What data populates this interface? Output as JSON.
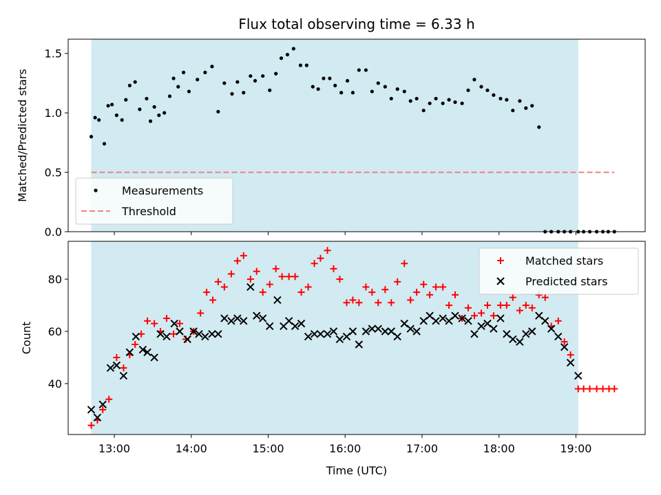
{
  "title": "Flux total observing time = 6.33 h",
  "colors": {
    "shade": "#add8e6",
    "measurement": "#000000",
    "threshold": "#f08080",
    "matched": "#ff0000",
    "predicted": "#000000"
  },
  "chart_data": [
    {
      "type": "scatter",
      "ylabel": "Matched/Predicted stars",
      "xlim": [
        12.4,
        19.9
      ],
      "ylim": [
        0.0,
        1.62
      ],
      "yticks": [
        "0.0",
        "0.5",
        "1.0",
        "1.5"
      ],
      "ytick_values": [
        0.0,
        0.5,
        1.0,
        1.5
      ],
      "observing_window": [
        12.7,
        19.03
      ],
      "threshold": {
        "name": "Threshold",
        "value": 0.5,
        "x": [
          12.7,
          19.5
        ]
      },
      "legend": {
        "position": "lower-left",
        "entries": [
          "Measurements",
          "Threshold"
        ]
      },
      "series": [
        {
          "name": "Measurements",
          "x": [
            12.7,
            12.75,
            12.8,
            12.87,
            12.92,
            12.97,
            13.03,
            13.1,
            13.15,
            13.2,
            13.27,
            13.33,
            13.42,
            13.47,
            13.52,
            13.58,
            13.65,
            13.72,
            13.77,
            13.83,
            13.9,
            13.97,
            14.08,
            14.18,
            14.27,
            14.35,
            14.43,
            14.53,
            14.6,
            14.68,
            14.77,
            14.83,
            14.93,
            15.02,
            15.1,
            15.17,
            15.25,
            15.33,
            15.42,
            15.5,
            15.58,
            15.65,
            15.72,
            15.8,
            15.87,
            15.95,
            16.03,
            16.1,
            16.18,
            16.27,
            16.35,
            16.43,
            16.52,
            16.6,
            16.68,
            16.77,
            16.85,
            16.93,
            17.02,
            17.1,
            17.18,
            17.27,
            17.35,
            17.43,
            17.52,
            17.6,
            17.68,
            17.77,
            17.85,
            17.93,
            18.02,
            18.1,
            18.18,
            18.27,
            18.35,
            18.43,
            18.52,
            18.6,
            18.68,
            18.77,
            18.85,
            18.93,
            19.03,
            19.1,
            19.18,
            19.27,
            19.35,
            19.42,
            19.5
          ],
          "y": [
            0.8,
            0.96,
            0.94,
            0.74,
            1.06,
            1.07,
            0.98,
            0.94,
            1.11,
            1.23,
            1.26,
            1.03,
            1.12,
            0.93,
            1.05,
            0.98,
            1.0,
            1.14,
            1.29,
            1.22,
            1.34,
            1.18,
            1.28,
            1.34,
            1.39,
            1.01,
            1.25,
            1.16,
            1.26,
            1.17,
            1.31,
            1.27,
            1.31,
            1.19,
            1.33,
            1.46,
            1.49,
            1.54,
            1.4,
            1.4,
            1.22,
            1.2,
            1.29,
            1.29,
            1.23,
            1.17,
            1.27,
            1.17,
            1.36,
            1.36,
            1.18,
            1.25,
            1.22,
            1.12,
            1.2,
            1.18,
            1.1,
            1.12,
            1.02,
            1.08,
            1.12,
            1.08,
            1.11,
            1.09,
            1.08,
            1.19,
            1.28,
            1.22,
            1.19,
            1.15,
            1.12,
            1.11,
            1.02,
            1.1,
            1.04,
            1.06,
            0.88,
            0.0,
            0.0,
            0.0,
            0.0,
            0.0,
            0.0,
            0.0,
            0.0,
            0.0,
            0.0,
            0.0,
            0.0
          ]
        }
      ]
    },
    {
      "type": "scatter",
      "xlabel": "Time (UTC)",
      "ylabel": "Count",
      "xlim": [
        12.4,
        19.9
      ],
      "ylim": [
        20.5,
        94.5
      ],
      "xticks": [
        "13:00",
        "14:00",
        "15:00",
        "16:00",
        "17:00",
        "18:00",
        "19:00"
      ],
      "xtick_values": [
        13,
        14,
        15,
        16,
        17,
        18,
        19
      ],
      "yticks": [
        "40",
        "60",
        "80"
      ],
      "ytick_values": [
        40,
        60,
        80
      ],
      "observing_window": [
        12.7,
        19.03
      ],
      "legend": {
        "position": "top-right",
        "entries": [
          "Matched stars",
          "Predicted stars"
        ]
      },
      "series": [
        {
          "name": "Matched stars",
          "x": [
            12.7,
            12.78,
            12.85,
            12.93,
            13.03,
            13.12,
            13.2,
            13.27,
            13.35,
            13.43,
            13.52,
            13.6,
            13.68,
            13.77,
            13.85,
            13.93,
            14.03,
            14.12,
            14.2,
            14.28,
            14.35,
            14.43,
            14.52,
            14.6,
            14.68,
            14.77,
            14.85,
            14.93,
            15.02,
            15.1,
            15.18,
            15.27,
            15.35,
            15.43,
            15.52,
            15.6,
            15.68,
            15.77,
            15.85,
            15.93,
            16.02,
            16.1,
            16.18,
            16.27,
            16.35,
            16.43,
            16.52,
            16.6,
            16.68,
            16.77,
            16.85,
            16.93,
            17.02,
            17.1,
            17.18,
            17.27,
            17.35,
            17.43,
            17.52,
            17.6,
            17.68,
            17.77,
            17.85,
            17.93,
            18.02,
            18.1,
            18.18,
            18.27,
            18.35,
            18.43,
            18.52,
            18.6,
            18.68,
            18.77,
            18.85,
            18.93,
            19.03,
            19.1,
            19.18,
            19.27,
            19.35,
            19.43,
            19.5
          ],
          "y": [
            24,
            26,
            30,
            34,
            50,
            46,
            51,
            55,
            59,
            64,
            63,
            60,
            65,
            59,
            63,
            57,
            60,
            67,
            75,
            72,
            79,
            77,
            82,
            87,
            89,
            80,
            83,
            75,
            78,
            84,
            81,
            81,
            81,
            75,
            77,
            86,
            88,
            91,
            84,
            80,
            71,
            72,
            71,
            77,
            75,
            71,
            76,
            71,
            79,
            86,
            72,
            75,
            78,
            74,
            77,
            77,
            70,
            74,
            65,
            69,
            66,
            67,
            70,
            66,
            70,
            70,
            73,
            68,
            70,
            69,
            74,
            73,
            62,
            64,
            56,
            51,
            38,
            38,
            38,
            38,
            38,
            38,
            38
          ]
        },
        {
          "name": "Predicted stars",
          "x": [
            12.7,
            12.78,
            12.85,
            12.95,
            13.03,
            13.12,
            13.2,
            13.28,
            13.37,
            13.43,
            13.52,
            13.6,
            13.68,
            13.78,
            13.85,
            13.95,
            14.03,
            14.1,
            14.18,
            14.27,
            14.35,
            14.43,
            14.52,
            14.6,
            14.68,
            14.77,
            14.85,
            14.93,
            15.02,
            15.12,
            15.2,
            15.27,
            15.35,
            15.43,
            15.52,
            15.6,
            15.68,
            15.77,
            15.85,
            15.93,
            16.02,
            16.1,
            16.18,
            16.27,
            16.35,
            16.43,
            16.52,
            16.6,
            16.68,
            16.77,
            16.85,
            16.93,
            17.02,
            17.1,
            17.18,
            17.27,
            17.35,
            17.43,
            17.52,
            17.6,
            17.68,
            17.77,
            17.85,
            17.93,
            18.02,
            18.1,
            18.18,
            18.27,
            18.35,
            18.43,
            18.52,
            18.6,
            18.68,
            18.77,
            18.85,
            18.93,
            19.03
          ],
          "y": [
            30,
            27,
            32,
            46,
            47,
            43,
            52,
            58,
            53,
            52,
            50,
            59,
            58,
            63,
            60,
            57,
            60,
            59,
            58,
            59,
            59,
            65,
            64,
            65,
            64,
            77,
            66,
            65,
            62,
            72,
            62,
            64,
            62,
            63,
            58,
            59,
            59,
            59,
            60,
            57,
            58,
            60,
            55,
            60,
            61,
            61,
            60,
            60,
            58,
            63,
            61,
            60,
            64,
            66,
            64,
            65,
            64,
            66,
            65,
            64,
            59,
            62,
            63,
            61,
            65,
            59,
            57,
            56,
            59,
            60,
            66,
            64,
            61,
            58,
            54,
            48,
            43
          ]
        }
      ]
    }
  ]
}
